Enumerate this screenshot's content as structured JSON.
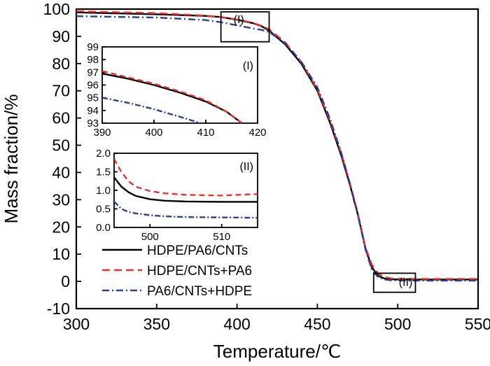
{
  "chart_data": {
    "type": "line",
    "xlabel": "Temperature/℃",
    "ylabel": "Mass fraction/%",
    "xlim": [
      300,
      550
    ],
    "ylim": [
      -10,
      100
    ],
    "xticks": [
      300,
      350,
      400,
      450,
      500,
      550
    ],
    "yticks": [
      -10,
      0,
      10,
      20,
      30,
      40,
      50,
      60,
      70,
      80,
      90,
      100
    ],
    "legend_position": "lower-left",
    "zoom_boxes": [
      {
        "label": "(I)",
        "x": [
          390,
          420
        ],
        "y": [
          88,
          99
        ]
      },
      {
        "label": "(II)",
        "x": [
          485,
          511
        ],
        "y": [
          -4,
          3
        ]
      }
    ],
    "series": [
      {
        "name": "HDPE/PA6/CNTs",
        "color": "#000000",
        "dash": "solid",
        "x": [
          300,
          350,
          380,
          390,
          400,
          410,
          415,
          420,
          430,
          440,
          450,
          458,
          465,
          470,
          475,
          480,
          484,
          488,
          492,
          496,
          500,
          510,
          520,
          550
        ],
        "y": [
          98.8,
          98.1,
          97.5,
          97.1,
          96.1,
          94.8,
          93.8,
          92.1,
          87.0,
          80.0,
          70.0,
          58.0,
          46.0,
          36.0,
          25.0,
          12.0,
          5.0,
          2.0,
          1.0,
          0.8,
          0.7,
          0.7,
          0.7,
          0.7
        ]
      },
      {
        "name": "HDPE/CNTs+PA6",
        "color": "#e8312a",
        "dash": "dashed",
        "x": [
          300,
          350,
          380,
          390,
          400,
          410,
          415,
          420,
          430,
          440,
          450,
          458,
          465,
          470,
          475,
          480,
          484,
          488,
          492,
          496,
          500,
          510,
          520,
          550
        ],
        "y": [
          99.2,
          98.5,
          97.6,
          97.1,
          96.2,
          94.9,
          93.9,
          92.6,
          87.8,
          80.6,
          70.5,
          58.8,
          46.8,
          36.6,
          25.5,
          12.3,
          6.0,
          2.8,
          1.6,
          1.1,
          1.0,
          0.9,
          0.9,
          0.9
        ]
      },
      {
        "name": "PA6/CNTs+HDPE",
        "color": "#2e3f8f",
        "dash": "dashdot",
        "x": [
          300,
          350,
          380,
          390,
          400,
          410,
          415,
          420,
          430,
          440,
          450,
          458,
          465,
          470,
          475,
          480,
          484,
          488,
          492,
          496,
          500,
          510,
          520,
          550
        ],
        "y": [
          97.4,
          96.9,
          96.0,
          95.2,
          94.0,
          92.9,
          92.4,
          91.6,
          87.4,
          80.7,
          71.3,
          59.5,
          47.0,
          36.5,
          24.8,
          11.5,
          4.0,
          1.5,
          0.7,
          0.4,
          0.3,
          0.25,
          0.25,
          0.25
        ]
      }
    ],
    "insets": [
      {
        "label": "(I)",
        "xlim": [
          390,
          420
        ],
        "ylim": [
          93,
          99
        ],
        "xticks": [
          390,
          400,
          410,
          420
        ],
        "yticks": [
          93,
          94,
          95,
          96,
          97,
          98,
          99
        ],
        "series": [
          {
            "name": "HDPE/PA6/CNTs",
            "x": [
              390,
              395,
              400,
              405,
              410,
              414,
              417
            ],
            "y": [
              96.9,
              96.5,
              96.0,
              95.4,
              94.7,
              93.9,
              93.0
            ]
          },
          {
            "name": "HDPE/CNTs+PA6",
            "x": [
              390,
              395,
              400,
              405,
              410,
              414,
              417
            ],
            "y": [
              97.1,
              96.6,
              96.1,
              95.5,
              94.8,
              93.9,
              93.0
            ]
          },
          {
            "name": "PA6/CNTs+HDPE",
            "x": [
              390,
              395,
              400,
              405,
              409
            ],
            "y": [
              95.0,
              94.6,
              94.1,
              93.5,
              93.0
            ]
          }
        ]
      },
      {
        "label": "(II)",
        "xlim": [
          495,
          515
        ],
        "ylim": [
          0,
          2
        ],
        "xticks": [
          500,
          510
        ],
        "yticks": [
          0.0,
          0.5,
          1.0,
          1.5,
          2.0
        ],
        "series": [
          {
            "name": "HDPE/PA6/CNTs",
            "x": [
              495,
              496,
              497,
              498,
              500,
              502,
              505,
              510,
              515
            ],
            "y": [
              1.35,
              1.1,
              0.95,
              0.85,
              0.76,
              0.72,
              0.7,
              0.69,
              0.69
            ]
          },
          {
            "name": "HDPE/CNTs+PA6",
            "x": [
              495,
              496,
              497,
              498,
              500,
              502,
              505,
              510,
              515
            ],
            "y": [
              1.85,
              1.5,
              1.25,
              1.1,
              0.98,
              0.92,
              0.88,
              0.86,
              0.9
            ]
          },
          {
            "name": "PA6/CNTs+HDPE",
            "x": [
              495,
              496,
              497,
              498,
              500,
              502,
              505,
              510,
              515
            ],
            "y": [
              0.7,
              0.5,
              0.42,
              0.38,
              0.33,
              0.3,
              0.28,
              0.27,
              0.26
            ]
          }
        ]
      }
    ]
  }
}
